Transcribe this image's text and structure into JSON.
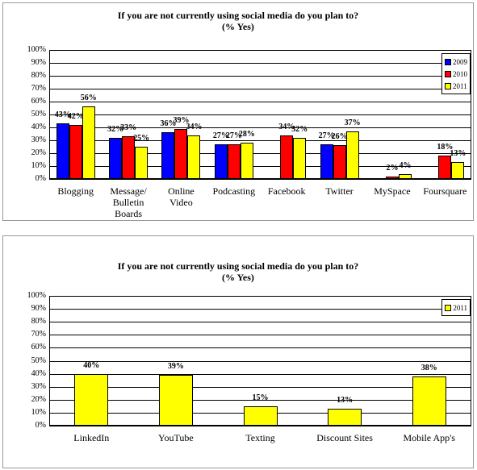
{
  "chart_data": [
    {
      "type": "bar",
      "title": "If you are not currently using social media do you plan to?",
      "subtitle": "(% Yes)",
      "categories": [
        "Blogging",
        "Message/ Bulletin Boards",
        "Online Video",
        "Podcasting",
        "Facebook",
        "Twitter",
        "MySpace",
        "Foursquare"
      ],
      "series": [
        {
          "name": "2009",
          "color": "#0000ff",
          "values": [
            43,
            32,
            36,
            27,
            null,
            27,
            null,
            null
          ],
          "value_labels": [
            "43%",
            "32%",
            "36%",
            "27%",
            null,
            "27%",
            null,
            null
          ]
        },
        {
          "name": "2010",
          "color": "#ff0000",
          "values": [
            42,
            33,
            39,
            27,
            34,
            26,
            2,
            18
          ],
          "value_labels": [
            "42%",
            "33%",
            "39%",
            "27%",
            "34%",
            "26%",
            "2%",
            "18%"
          ]
        },
        {
          "name": "2011",
          "color": "#ffff00",
          "values": [
            56,
            25,
            34,
            28,
            32,
            37,
            4,
            13
          ],
          "value_labels": [
            "56%",
            "25%",
            "34%",
            "28%",
            "32%",
            "37%",
            "4%",
            "13%"
          ]
        }
      ],
      "ylim": [
        0,
        100
      ],
      "yticks": [
        {
          "value": 0,
          "label": "0%"
        },
        {
          "value": 10,
          "label": "10%"
        },
        {
          "value": 20,
          "label": "20%"
        },
        {
          "value": 30,
          "label": "30%"
        },
        {
          "value": 40,
          "label": "40%"
        },
        {
          "value": 50,
          "label": "50%"
        },
        {
          "value": 60,
          "label": "60%"
        },
        {
          "value": 70,
          "label": "70%"
        },
        {
          "value": 80,
          "label": "80%"
        },
        {
          "value": 90,
          "label": "90%"
        },
        {
          "value": 100,
          "label": "100%"
        }
      ],
      "grid": true,
      "legend": "top-right"
    },
    {
      "type": "bar",
      "title": "If you are not currently using social media do you plan to?",
      "subtitle": "(% Yes)",
      "categories": [
        "LinkedIn",
        "YouTube",
        "Texting",
        "Discount Sites",
        "Mobile App's"
      ],
      "series": [
        {
          "name": "2011",
          "color": "#ffff00",
          "values": [
            40,
            39,
            15,
            13,
            38
          ],
          "value_labels": [
            "40%",
            "39%",
            "15%",
            "13%",
            "38%"
          ]
        }
      ],
      "ylim": [
        0,
        100
      ],
      "yticks": [
        {
          "value": 0,
          "label": "0%"
        },
        {
          "value": 10,
          "label": "10%"
        },
        {
          "value": 20,
          "label": "20%"
        },
        {
          "value": 30,
          "label": "30%"
        },
        {
          "value": 40,
          "label": "40%"
        },
        {
          "value": 50,
          "label": "50%"
        },
        {
          "value": 60,
          "label": "60%"
        },
        {
          "value": 70,
          "label": "70%"
        },
        {
          "value": 80,
          "label": "80%"
        },
        {
          "value": 90,
          "label": "90%"
        },
        {
          "value": 100,
          "label": "100%"
        }
      ],
      "grid": true,
      "legend": "top-right"
    }
  ]
}
